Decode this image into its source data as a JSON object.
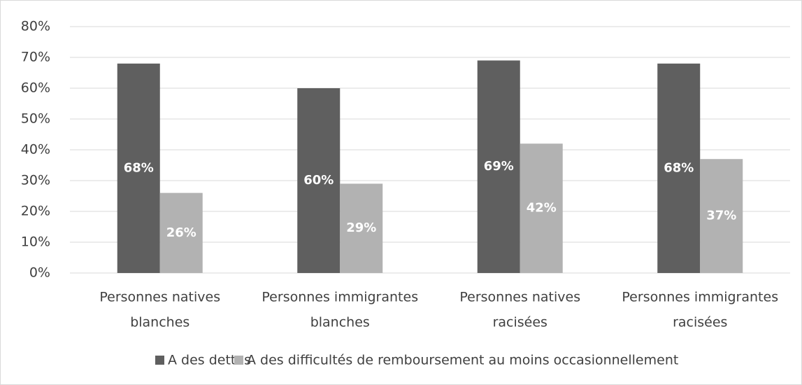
{
  "chart_data": {
    "type": "bar",
    "categories": [
      [
        "Personnes natives",
        "blanches"
      ],
      [
        "Personnes immigrantes",
        "blanches"
      ],
      [
        "Personnes natives",
        "racisées"
      ],
      [
        "Personnes immigrantes",
        "racisées"
      ]
    ],
    "series": [
      {
        "name": "A des dettes",
        "color": "#5f5f5f",
        "values": [
          68,
          60,
          69,
          68
        ],
        "value_labels": [
          "68%",
          "60%",
          "69%",
          "68%"
        ]
      },
      {
        "name": "A des difficultés de remboursement au moins occasionnellement",
        "color": "#b2b2b2",
        "values": [
          26,
          29,
          42,
          37
        ],
        "value_labels": [
          "26%",
          "29%",
          "42%",
          "37%"
        ]
      }
    ],
    "ylim": [
      0,
      80
    ],
    "yticks": [
      {
        "value": 0,
        "label": "0%"
      },
      {
        "value": 10,
        "label": "10%"
      },
      {
        "value": 20,
        "label": "20%"
      },
      {
        "value": 30,
        "label": "30%"
      },
      {
        "value": 40,
        "label": "40%"
      },
      {
        "value": 50,
        "label": "50%"
      },
      {
        "value": 60,
        "label": "60%"
      },
      {
        "value": 70,
        "label": "70%"
      },
      {
        "value": 80,
        "label": "80%"
      }
    ],
    "grid": true,
    "legend": "bottom"
  }
}
